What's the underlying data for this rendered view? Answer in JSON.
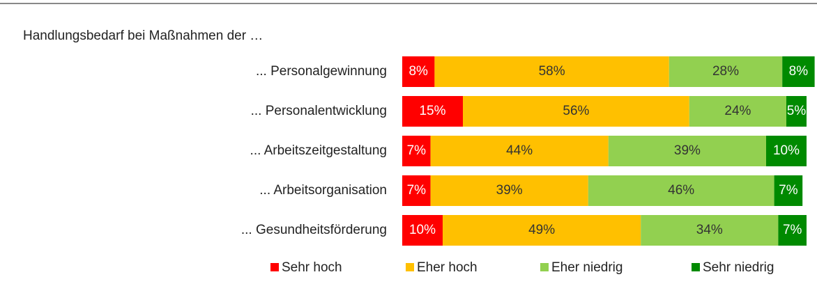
{
  "chart_data": {
    "type": "stacked-bar-horizontal",
    "subtitle": "Handlungsbedarf bei Maßnahmen der …",
    "categories": [
      "... Personalgewinnung",
      "... Personalentwicklung",
      "... Arbeitszeitgestaltung",
      "... Arbeitsorganisation",
      "... Gesundheitsförderung"
    ],
    "series": [
      {
        "name": "Sehr hoch",
        "color": "#ff0000",
        "values": [
          8,
          15,
          7,
          7,
          10
        ],
        "value_labels": [
          "8%",
          "15%",
          "7%",
          "7%",
          "10%"
        ]
      },
      {
        "name": "Eher hoch",
        "color": "#ffc000",
        "values": [
          58,
          56,
          44,
          39,
          49
        ],
        "value_labels": [
          "58%",
          "56%",
          "44%",
          "39%",
          "49%"
        ]
      },
      {
        "name": "Eher niedrig",
        "color": "#92d050",
        "values": [
          28,
          24,
          39,
          46,
          34
        ],
        "value_labels": [
          "28%",
          "24%",
          "39%",
          "46%",
          "34%"
        ]
      },
      {
        "name": "Sehr niedrig",
        "color": "#008a00",
        "values": [
          8,
          5,
          10,
          7,
          7
        ],
        "value_labels": [
          "8%",
          "5%",
          "10%",
          "7%",
          "7%"
        ]
      }
    ],
    "legend": "bottom"
  }
}
